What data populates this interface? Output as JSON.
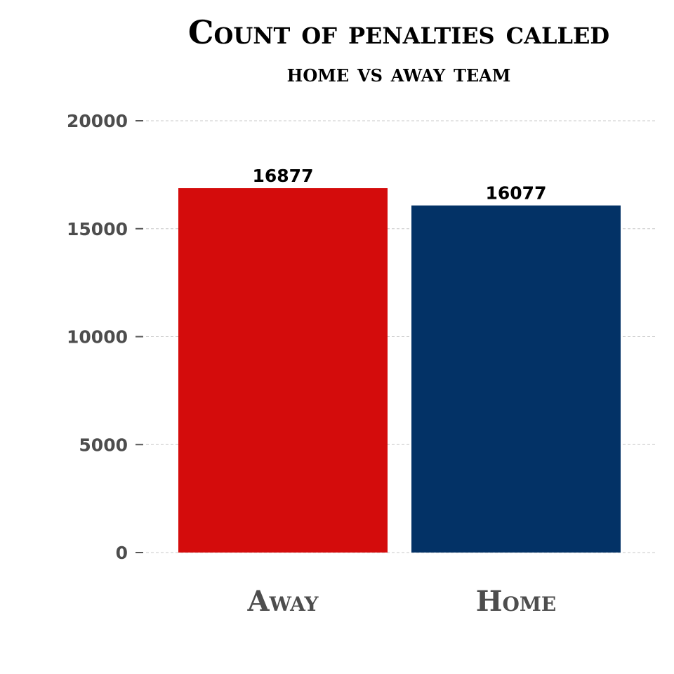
{
  "chart_data": {
    "type": "bar",
    "title": "Count of penalties called",
    "subtitle": "home vs away team",
    "categories": [
      "Away",
      "Home"
    ],
    "values": [
      16877,
      16077
    ],
    "data_labels": [
      "16877",
      "16077"
    ],
    "colors": [
      "#d40c0c",
      "#033266"
    ],
    "ylim": [
      0,
      20000
    ],
    "yticks": [
      0,
      5000,
      10000,
      15000,
      20000
    ],
    "ytick_labels": [
      "0",
      "5000",
      "10000",
      "15000",
      "20000"
    ],
    "grid": "horizontal-dashed",
    "legend": "none"
  }
}
